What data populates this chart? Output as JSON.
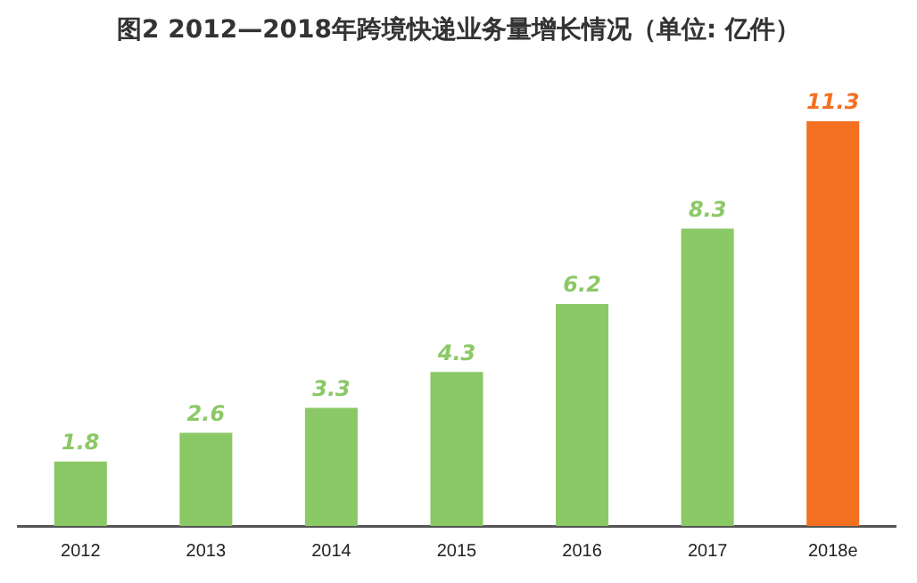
{
  "chart_data": {
    "type": "bar",
    "title": "图2  2012—2018年跨境快递业务量增长情况（单位: 亿件）",
    "categories": [
      "2012",
      "2013",
      "2014",
      "2015",
      "2016",
      "2017",
      "2018e"
    ],
    "values": [
      1.8,
      2.6,
      3.3,
      4.3,
      6.2,
      8.3,
      11.3
    ],
    "colors": [
      "#8bc866",
      "#8bc866",
      "#8bc866",
      "#8bc866",
      "#8bc866",
      "#8bc866",
      "#f37021"
    ],
    "data_labels": true,
    "tick_labels": "x"
  }
}
